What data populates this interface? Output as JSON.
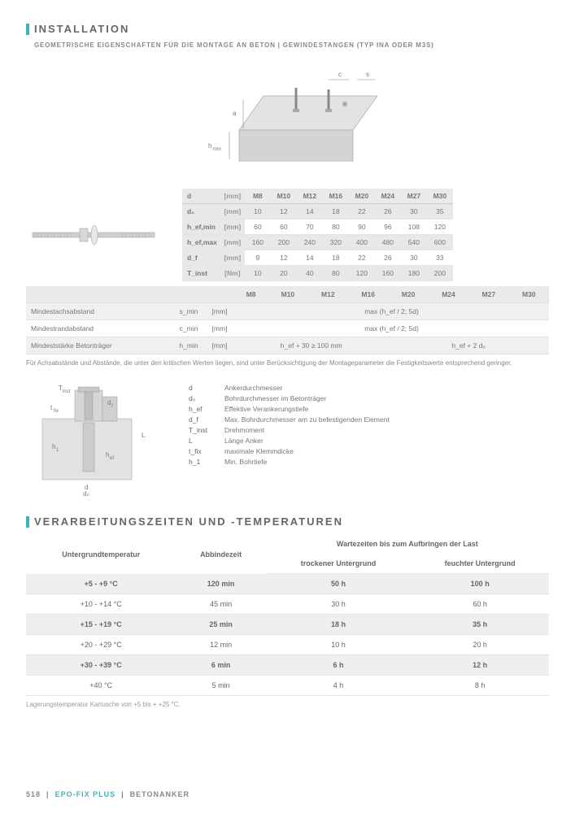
{
  "section1": {
    "title": "INSTALLATION",
    "subtitle": "GEOMETRISCHE EIGENSCHAFTEN FÜR DIE MONTAGE AN BETON | GEWINDESTANGEN (TYP INA ODER M3S)"
  },
  "diagram_top": {
    "labels": {
      "c": "c",
      "s": "s",
      "a": "a",
      "hmin": "h_min"
    }
  },
  "table1": {
    "head": [
      "d",
      "[mm]",
      "M8",
      "M10",
      "M12",
      "M16",
      "M20",
      "M24",
      "M27",
      "M30"
    ],
    "rows": [
      {
        "lab": "d₀",
        "unit": "[mm]",
        "vals": [
          "10",
          "12",
          "14",
          "18",
          "22",
          "26",
          "30",
          "35"
        ],
        "hl": true
      },
      {
        "lab": "h_ef,min",
        "unit": "[mm]",
        "vals": [
          "60",
          "60",
          "70",
          "80",
          "90",
          "96",
          "108",
          "120"
        ],
        "hl": false
      },
      {
        "lab": "h_ef,max",
        "unit": "[mm]",
        "vals": [
          "160",
          "200",
          "240",
          "320",
          "400",
          "480",
          "540",
          "600"
        ],
        "hl": true
      },
      {
        "lab": "d_f",
        "unit": "[mm]",
        "vals": [
          "9",
          "12",
          "14",
          "18",
          "22",
          "26",
          "30",
          "33"
        ],
        "hl": false
      },
      {
        "lab": "T_inst",
        "unit": "[Nm]",
        "vals": [
          "10",
          "20",
          "40",
          "80",
          "120",
          "160",
          "180",
          "200"
        ],
        "hl": true
      }
    ]
  },
  "table2": {
    "head": [
      "",
      "",
      "",
      "M8",
      "M10",
      "M12",
      "M16",
      "M20",
      "M24",
      "M27",
      "M30"
    ],
    "rows": [
      {
        "desc": "Mindestachsabstand",
        "sym": "s_min",
        "unit": "[mm]",
        "val": "max (h_ef / 2; 5d)",
        "hl": true
      },
      {
        "desc": "Mindestrandabstand",
        "sym": "c_min",
        "unit": "[mm]",
        "val": "max (h_ef / 2; 5d)",
        "hl": false
      },
      {
        "desc": "Mindeststärke Betonträger",
        "sym": "h_min",
        "unit": "[mm]",
        "val_a": "h_ef + 30 ≥ 100 mm",
        "val_b": "h_ef + 2 d₀",
        "hl": true
      }
    ]
  },
  "note1": "Für Achsabstände und Abstände, die unter den kritischen Werten liegen, sind unter Berücksichtigung der Montageparameter die Festigkeitswerte entsprechend geringer.",
  "legend": [
    {
      "s": "d",
      "t": "Ankerdurchmesser"
    },
    {
      "s": "d₀",
      "t": "Bohrdurchmesser im Betonträger"
    },
    {
      "s": "h_ef",
      "t": "Effektive Verankerungstiefe"
    },
    {
      "s": "d_f",
      "t": "Max. Bohrdurchmesser am zu befestigenden Element"
    },
    {
      "s": "T_inst",
      "t": "Drehmoment"
    },
    {
      "s": "L",
      "t": "Länge Anker"
    },
    {
      "s": "t_fix",
      "t": "maximale Klemmdicke"
    },
    {
      "s": "h_1",
      "t": "Min. Bohrtiefe"
    }
  ],
  "diag2": {
    "labels": [
      "T_inst",
      "t_fix",
      "h_1",
      "d_f",
      "L",
      "h_ef",
      "d",
      "d₀"
    ]
  },
  "section2": {
    "title": "VERARBEITUNGSZEITEN UND -TEMPERATUREN"
  },
  "table3": {
    "head": {
      "c1": "Untergrundtemperatur",
      "c2": "Abbindezeit",
      "c3": "Wartezeiten bis zum Aufbringen der Last",
      "c3a": "trockener Untergrund",
      "c3b": "feuchter Untergrund"
    },
    "rows": [
      {
        "a": "+5 - +9 °C",
        "b": "120 min",
        "c": "50 h",
        "d": "100 h",
        "hl": true
      },
      {
        "a": "+10 - +14 °C",
        "b": "45 min",
        "c": "30 h",
        "d": "60 h",
        "hl": false
      },
      {
        "a": "+15 - +19 °C",
        "b": "25 min",
        "c": "18 h",
        "d": "35 h",
        "hl": true
      },
      {
        "a": "+20 - +29 °C",
        "b": "12 min",
        "c": "10 h",
        "d": "20 h",
        "hl": false
      },
      {
        "a": "+30 - +39 °C",
        "b": "6 min",
        "c": "6 h",
        "d": "12 h",
        "hl": true
      },
      {
        "a": "+40 °C",
        "b": "5 min",
        "c": "4 h",
        "d": "8 h",
        "hl": false
      }
    ]
  },
  "note2": "Lagerungstemperatur Kartusche von +5 bis + +25 °C.",
  "footer": {
    "page": "518",
    "prod": "EPO-FIX PLUS",
    "cat": "BETONANKER"
  },
  "colors": {
    "accent": "#3db6b8",
    "grey": "#888",
    "lightgrid": "#e0e0e0",
    "hlbg": "#efefef"
  }
}
